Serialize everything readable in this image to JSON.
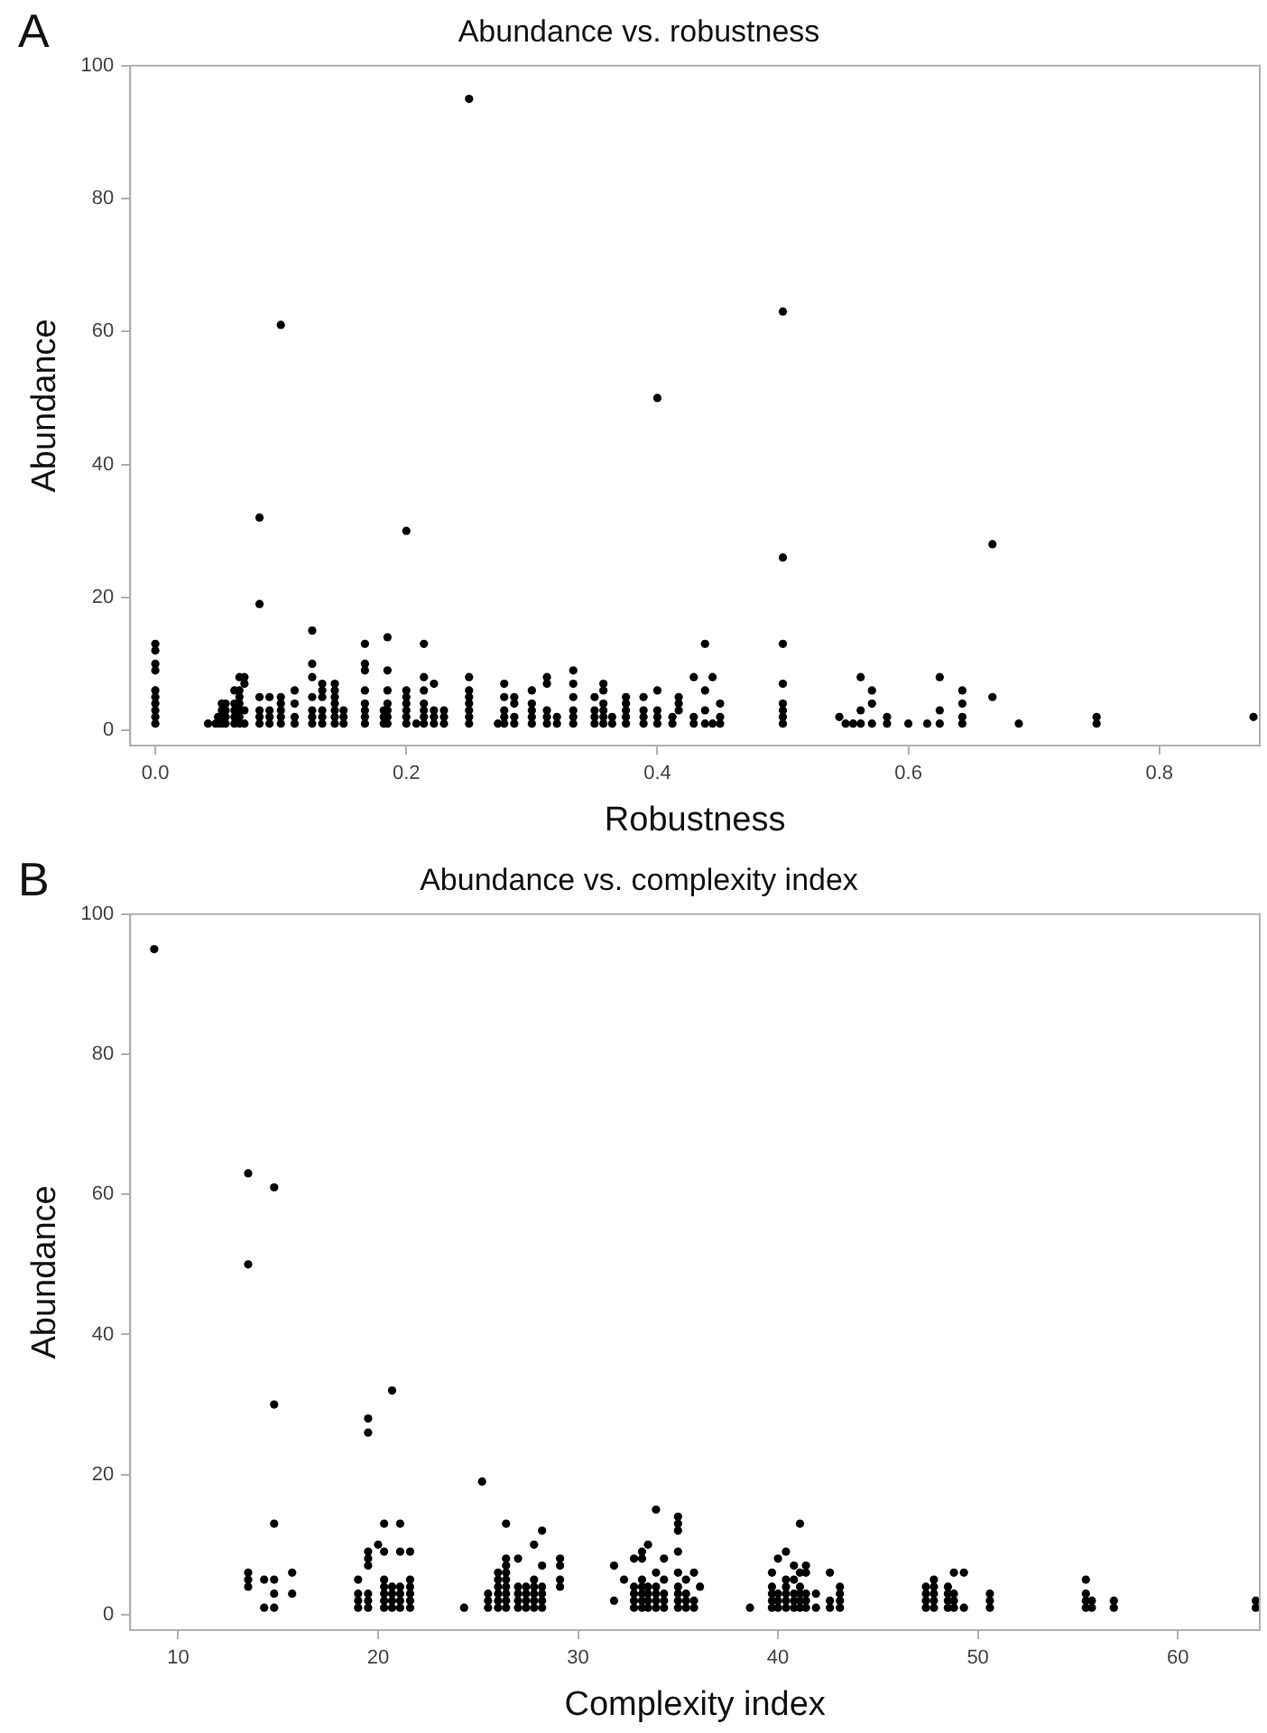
{
  "chart_data": [
    {
      "type": "scatter",
      "title": "Abundance vs. robustness",
      "xlabel": "Robustness",
      "ylabel": "Abundance",
      "annotations": [
        "A"
      ],
      "color": "#000000",
      "marker": "circle",
      "legend": false,
      "grid": false,
      "xlim": [
        -0.02,
        0.88
      ],
      "ylim": [
        -2.3,
        100
      ],
      "xticks": [
        {
          "value": 0,
          "label": "0.0"
        },
        0.2,
        0.4,
        0.6,
        0.8
      ],
      "yticks": [
        0,
        20,
        40,
        60,
        80,
        100
      ],
      "x": [
        0,
        0,
        0,
        0,
        0,
        0,
        0,
        0,
        0,
        0,
        0.042,
        0.048,
        0.05,
        0.05,
        0.053,
        0.053,
        0.053,
        0.053,
        0.056,
        0.056,
        0.056,
        0.056,
        0.063,
        0.063,
        0.063,
        0.063,
        0.063,
        0.067,
        0.067,
        0.067,
        0.067,
        0.067,
        0.067,
        0.067,
        0.071,
        0.071,
        0.071,
        0.071,
        0.083,
        0.083,
        0.083,
        0.083,
        0.083,
        0.083,
        0.091,
        0.091,
        0.091,
        0.091,
        0.1,
        0.1,
        0.1,
        0.1,
        0.1,
        0.1,
        0.111,
        0.111,
        0.111,
        0.111,
        0.125,
        0.125,
        0.125,
        0.125,
        0.125,
        0.125,
        0.125,
        0.133,
        0.133,
        0.133,
        0.133,
        0.133,
        0.133,
        0.143,
        0.143,
        0.143,
        0.143,
        0.143,
        0.143,
        0.143,
        0.15,
        0.15,
        0.15,
        0.167,
        0.167,
        0.167,
        0.167,
        0.167,
        0.167,
        0.167,
        0.167,
        0.182,
        0.182,
        0.182,
        0.185,
        0.185,
        0.185,
        0.185,
        0.185,
        0.185,
        0.185,
        0.2,
        0.2,
        0.2,
        0.2,
        0.2,
        0.2,
        0.2,
        0.208,
        0.214,
        0.214,
        0.214,
        0.214,
        0.214,
        0.214,
        0.214,
        0.222,
        0.222,
        0.222,
        0.222,
        0.23,
        0.23,
        0.23,
        0.25,
        0.25,
        0.25,
        0.25,
        0.25,
        0.25,
        0.25,
        0.25,
        0.273,
        0.278,
        0.278,
        0.278,
        0.278,
        0.278,
        0.286,
        0.286,
        0.286,
        0.286,
        0.3,
        0.3,
        0.3,
        0.3,
        0.3,
        0.312,
        0.312,
        0.312,
        0.312,
        0.312,
        0.32,
        0.32,
        0.333,
        0.333,
        0.333,
        0.333,
        0.333,
        0.333,
        0.35,
        0.35,
        0.35,
        0.35,
        0.357,
        0.357,
        0.357,
        0.357,
        0.357,
        0.357,
        0.364,
        0.364,
        0.375,
        0.375,
        0.375,
        0.375,
        0.375,
        0.389,
        0.389,
        0.389,
        0.389,
        0.4,
        0.4,
        0.4,
        0.4,
        0.4,
        0.412,
        0.412,
        0.417,
        0.417,
        0.417,
        0.429,
        0.429,
        0.429,
        0.438,
        0.438,
        0.438,
        0.438,
        0.444,
        0.444,
        0.45,
        0.45,
        0.45,
        0.5,
        0.5,
        0.5,
        0.5,
        0.5,
        0.5,
        0.5,
        0.5,
        0.545,
        0.55,
        0.556,
        0.562,
        0.562,
        0.562,
        0.571,
        0.571,
        0.571,
        0.583,
        0.583,
        0.6,
        0.615,
        0.625,
        0.625,
        0.625,
        0.643,
        0.643,
        0.643,
        0.643,
        0.667,
        0.667,
        0.688,
        0.75,
        0.75,
        0.875
      ],
      "values": [
        1,
        2,
        3,
        4,
        5,
        6,
        9,
        10,
        12,
        13,
        1,
        1,
        1,
        2,
        1,
        2,
        3,
        4,
        1,
        2,
        3,
        4,
        1,
        2,
        3,
        4,
        6,
        1,
        2,
        3,
        4,
        5,
        6,
        8,
        1,
        3,
        7,
        8,
        1,
        2,
        3,
        5,
        19,
        32,
        1,
        2,
        3,
        5,
        1,
        2,
        3,
        4,
        5,
        61,
        1,
        2,
        4,
        6,
        1,
        2,
        3,
        5,
        8,
        10,
        15,
        1,
        2,
        3,
        5,
        6,
        7,
        1,
        2,
        3,
        4,
        5,
        6,
        7,
        1,
        2,
        3,
        1,
        2,
        3,
        4,
        6,
        9,
        10,
        13,
        1,
        2,
        3,
        1,
        2,
        3,
        4,
        6,
        9,
        14,
        1,
        2,
        3,
        4,
        5,
        6,
        30,
        1,
        1,
        2,
        3,
        4,
        6,
        8,
        13,
        1,
        2,
        3,
        7,
        1,
        2,
        3,
        1,
        2,
        3,
        4,
        5,
        6,
        8,
        95,
        1,
        1,
        2,
        3,
        5,
        7,
        1,
        2,
        4,
        5,
        1,
        2,
        3,
        4,
        6,
        1,
        2,
        3,
        7,
        8,
        1,
        2,
        1,
        2,
        3,
        5,
        7,
        9,
        1,
        2,
        3,
        5,
        1,
        2,
        3,
        4,
        6,
        7,
        1,
        2,
        1,
        2,
        3,
        4,
        5,
        1,
        2,
        3,
        5,
        1,
        2,
        3,
        6,
        50,
        1,
        2,
        3,
        4,
        5,
        1,
        2,
        8,
        1,
        3,
        6,
        13,
        1,
        8,
        1,
        2,
        4,
        1,
        2,
        3,
        4,
        7,
        13,
        26,
        63,
        2,
        1,
        1,
        1,
        3,
        8,
        1,
        4,
        6,
        1,
        2,
        1,
        1,
        1,
        3,
        8,
        1,
        2,
        4,
        6,
        5,
        28,
        1,
        1,
        2,
        2
      ]
    },
    {
      "type": "scatter",
      "title": "Abundance vs. complexity index",
      "xlabel": "Complexity index",
      "ylabel": "Abundance",
      "annotations": [
        "B"
      ],
      "color": "#000000",
      "marker": "circle",
      "legend": false,
      "grid": false,
      "xlim": [
        7.6,
        64.1
      ],
      "ylim": [
        -2.2,
        100
      ],
      "xticks": [
        10,
        20,
        30,
        40,
        50,
        60
      ],
      "yticks": [
        0,
        20,
        40,
        60,
        80,
        100
      ],
      "x": [
        8.8,
        13.5,
        13.5,
        13.5,
        13.5,
        13.5,
        14.3,
        14.3,
        14.8,
        14.8,
        14.8,
        14.8,
        14.8,
        14.8,
        15.7,
        15.7,
        19,
        19,
        19,
        19,
        19.5,
        19.5,
        19.5,
        19.5,
        19.5,
        19.5,
        19.5,
        19.5,
        20,
        20.3,
        20.3,
        20.3,
        20.3,
        20.3,
        20.3,
        20.3,
        20.7,
        20.7,
        20.7,
        20.7,
        20.7,
        21.1,
        21.1,
        21.1,
        21.1,
        21.1,
        21.1,
        21.6,
        21.6,
        21.6,
        21.6,
        21.6,
        21.6,
        24.3,
        25.2,
        25.5,
        25.5,
        25.5,
        26,
        26,
        26,
        26,
        26,
        26,
        26.4,
        26.4,
        26.4,
        26.4,
        26.4,
        26.4,
        26.4,
        26.4,
        26.4,
        27,
        27,
        27,
        27,
        27,
        27.4,
        27.4,
        27.4,
        27.4,
        27.8,
        27.8,
        27.8,
        27.8,
        27.8,
        27.8,
        28.2,
        28.2,
        28.2,
        28.2,
        28.2,
        28.2,
        29.1,
        29.1,
        29.1,
        29.1,
        31.8,
        31.8,
        32.3,
        32.8,
        32.8,
        32.8,
        32.8,
        32.8,
        33.2,
        33.2,
        33.2,
        33.2,
        33.2,
        33.2,
        33.2,
        33.5,
        33.5,
        33.5,
        33.5,
        33.5,
        33.9,
        33.9,
        33.9,
        33.9,
        33.9,
        33.9,
        34.3,
        34.3,
        34.3,
        34.3,
        34.3,
        35,
        35,
        35,
        35,
        35,
        35,
        35,
        35,
        35,
        35.4,
        35.4,
        35.4,
        35.4,
        35.8,
        35.8,
        35.8,
        36.1,
        38.6,
        39.7,
        39.7,
        39.7,
        39.7,
        39.7,
        40,
        40,
        40,
        40,
        40.4,
        40.4,
        40.4,
        40.4,
        40.4,
        40.4,
        40.8,
        40.8,
        40.8,
        40.8,
        40.8,
        41.1,
        41.1,
        41.1,
        41.1,
        41.1,
        41.1,
        41.4,
        41.4,
        41.4,
        41.4,
        41.4,
        41.9,
        41.9,
        42.6,
        42.6,
        42.6,
        43.1,
        43.1,
        43.1,
        43.1,
        47.4,
        47.4,
        47.4,
        47.4,
        47.8,
        47.8,
        47.8,
        47.8,
        47.8,
        48.5,
        48.5,
        48.5,
        48.5,
        48.8,
        48.8,
        48.8,
        48.8,
        49.3,
        49.3,
        50.6,
        50.6,
        50.6,
        55.4,
        55.4,
        55.4,
        55.4,
        55.7,
        55.7,
        56.8,
        56.8,
        63.9,
        63.9
      ],
      "values": [
        95,
        4,
        5,
        6,
        50,
        63,
        1,
        5,
        1,
        3,
        5,
        13,
        30,
        61,
        3,
        6,
        1,
        2,
        3,
        5,
        1,
        2,
        3,
        7,
        8,
        9,
        26,
        28,
        10,
        1,
        2,
        3,
        4,
        5,
        9,
        13,
        1,
        2,
        3,
        4,
        32,
        1,
        2,
        3,
        4,
        9,
        13,
        1,
        2,
        3,
        4,
        5,
        9,
        1,
        19,
        1,
        2,
        3,
        1,
        2,
        3,
        4,
        5,
        6,
        1,
        2,
        3,
        4,
        5,
        6,
        7,
        8,
        13,
        1,
        2,
        3,
        4,
        8,
        1,
        2,
        3,
        4,
        1,
        2,
        3,
        4,
        5,
        10,
        1,
        2,
        3,
        4,
        7,
        12,
        4,
        5,
        7,
        8,
        2,
        7,
        5,
        1,
        2,
        3,
        4,
        8,
        1,
        2,
        3,
        4,
        5,
        8,
        9,
        1,
        2,
        3,
        4,
        10,
        1,
        2,
        3,
        4,
        6,
        15,
        1,
        2,
        3,
        5,
        8,
        1,
        2,
        3,
        4,
        6,
        9,
        12,
        13,
        14,
        1,
        2,
        3,
        5,
        1,
        2,
        6,
        4,
        1,
        1,
        2,
        3,
        4,
        6,
        1,
        2,
        3,
        8,
        1,
        2,
        3,
        4,
        5,
        9,
        1,
        2,
        3,
        5,
        7,
        1,
        2,
        3,
        4,
        6,
        13,
        1,
        2,
        3,
        6,
        7,
        1,
        3,
        1,
        2,
        6,
        1,
        2,
        3,
        4,
        1,
        2,
        3,
        4,
        1,
        2,
        3,
        4,
        5,
        1,
        2,
        3,
        4,
        1,
        2,
        3,
        6,
        1,
        6,
        1,
        2,
        3,
        1,
        2,
        3,
        5,
        1,
        2,
        1,
        2,
        1,
        2
      ]
    }
  ]
}
